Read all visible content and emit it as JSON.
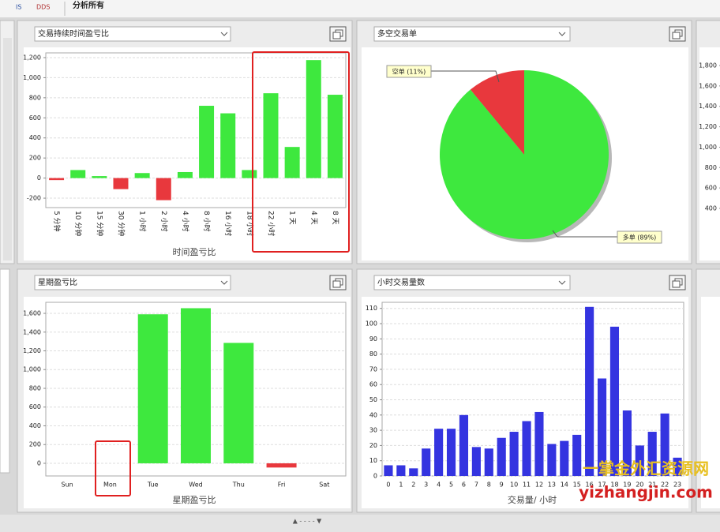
{
  "toolbar": {
    "icons": [
      "IS",
      "DDS"
    ],
    "title": "分析所有"
  },
  "splitter": "▲ - - - - ▼",
  "watermark": {
    "line1": "一掌金外汇资源网",
    "line2": "yizhangjin.com"
  },
  "chart_data": [
    {
      "type": "bar",
      "dropdown": "交易持续时间盈亏比",
      "xlabel": "时间盈亏比",
      "categories": [
        "5 分钟",
        "10 分钟",
        "15 分钟",
        "30 分钟",
        "1 小时",
        "2 小时",
        "4 小时",
        "8 小时",
        "16 小时",
        "18 小时",
        "22 小时",
        "1 天",
        "4 天",
        "8 天"
      ],
      "values": [
        -20,
        80,
        20,
        -110,
        50,
        -220,
        60,
        720,
        645,
        80,
        845,
        310,
        1175,
        830
      ],
      "colors": {
        "positive": "#3ee83e",
        "negative": "#e8383d"
      },
      "ylim": [
        -294,
        1247
      ],
      "yticks": [
        -200,
        0,
        200,
        400,
        600,
        800,
        {
          "value": 1000,
          "label": "1,000"
        },
        {
          "value": 1200,
          "label": "1,200"
        }
      ],
      "grid": true
    },
    {
      "type": "pie",
      "dropdown": "多空交易单",
      "categories": [
        "空单",
        "多单"
      ],
      "values": [
        11,
        89
      ],
      "value_labels": [
        "空单 (11%)",
        "多单 (89%)"
      ],
      "colors": [
        "#e8383d",
        "#3ee83e"
      ]
    },
    {
      "type": "bar",
      "dropdown": "星期盈亏比",
      "xlabel": "星期盈亏比",
      "categories": [
        "Sun",
        "Mon",
        "Tue",
        "Wed",
        "Thu",
        "Fri",
        "Sat"
      ],
      "values": [
        0,
        0,
        1590,
        1655,
        1285,
        -45,
        0
      ],
      "colors": {
        "positive": "#3ee83e",
        "negative": "#e8383d"
      },
      "ylim": [
        -135,
        1718
      ],
      "yticks": [
        0,
        200,
        400,
        600,
        800,
        {
          "value": 1000,
          "label": "1,000"
        },
        {
          "value": 1200,
          "label": "1,200"
        },
        {
          "value": 1400,
          "label": "1,400"
        },
        {
          "value": 1600,
          "label": "1,600"
        }
      ],
      "grid": true
    },
    {
      "type": "bar",
      "dropdown": "小时交易量数",
      "xlabel": "交易量/ 小时",
      "categories": [
        "0",
        "1",
        "2",
        "3",
        "4",
        "5",
        "6",
        "7",
        "8",
        "9",
        "10",
        "11",
        "12",
        "13",
        "14",
        "15",
        "16",
        "17",
        "18",
        "19",
        "20",
        "21",
        "22",
        "23"
      ],
      "values": [
        7,
        7,
        5,
        18,
        31,
        31,
        40,
        19,
        18,
        25,
        29,
        36,
        42,
        21,
        23,
        27,
        111,
        64,
        98,
        43,
        20,
        29,
        41,
        12
      ],
      "color": "#3434e0",
      "ylim": [
        0,
        114
      ],
      "yticks": [
        0,
        10,
        20,
        30,
        40,
        50,
        60,
        70,
        80,
        90,
        100,
        110
      ],
      "grid": true
    },
    {
      "type": "bar",
      "ylim": [
        315,
        1924
      ],
      "yticks": [
        400,
        600,
        800,
        {
          "value": 1000,
          "label": "1,000"
        },
        {
          "value": 1200,
          "label": "1,200"
        },
        {
          "value": 1400,
          "label": "1,400"
        },
        {
          "value": 1600,
          "label": "1,600"
        },
        {
          "value": 1800,
          "label": "1,800"
        }
      ],
      "grid": false
    }
  ]
}
